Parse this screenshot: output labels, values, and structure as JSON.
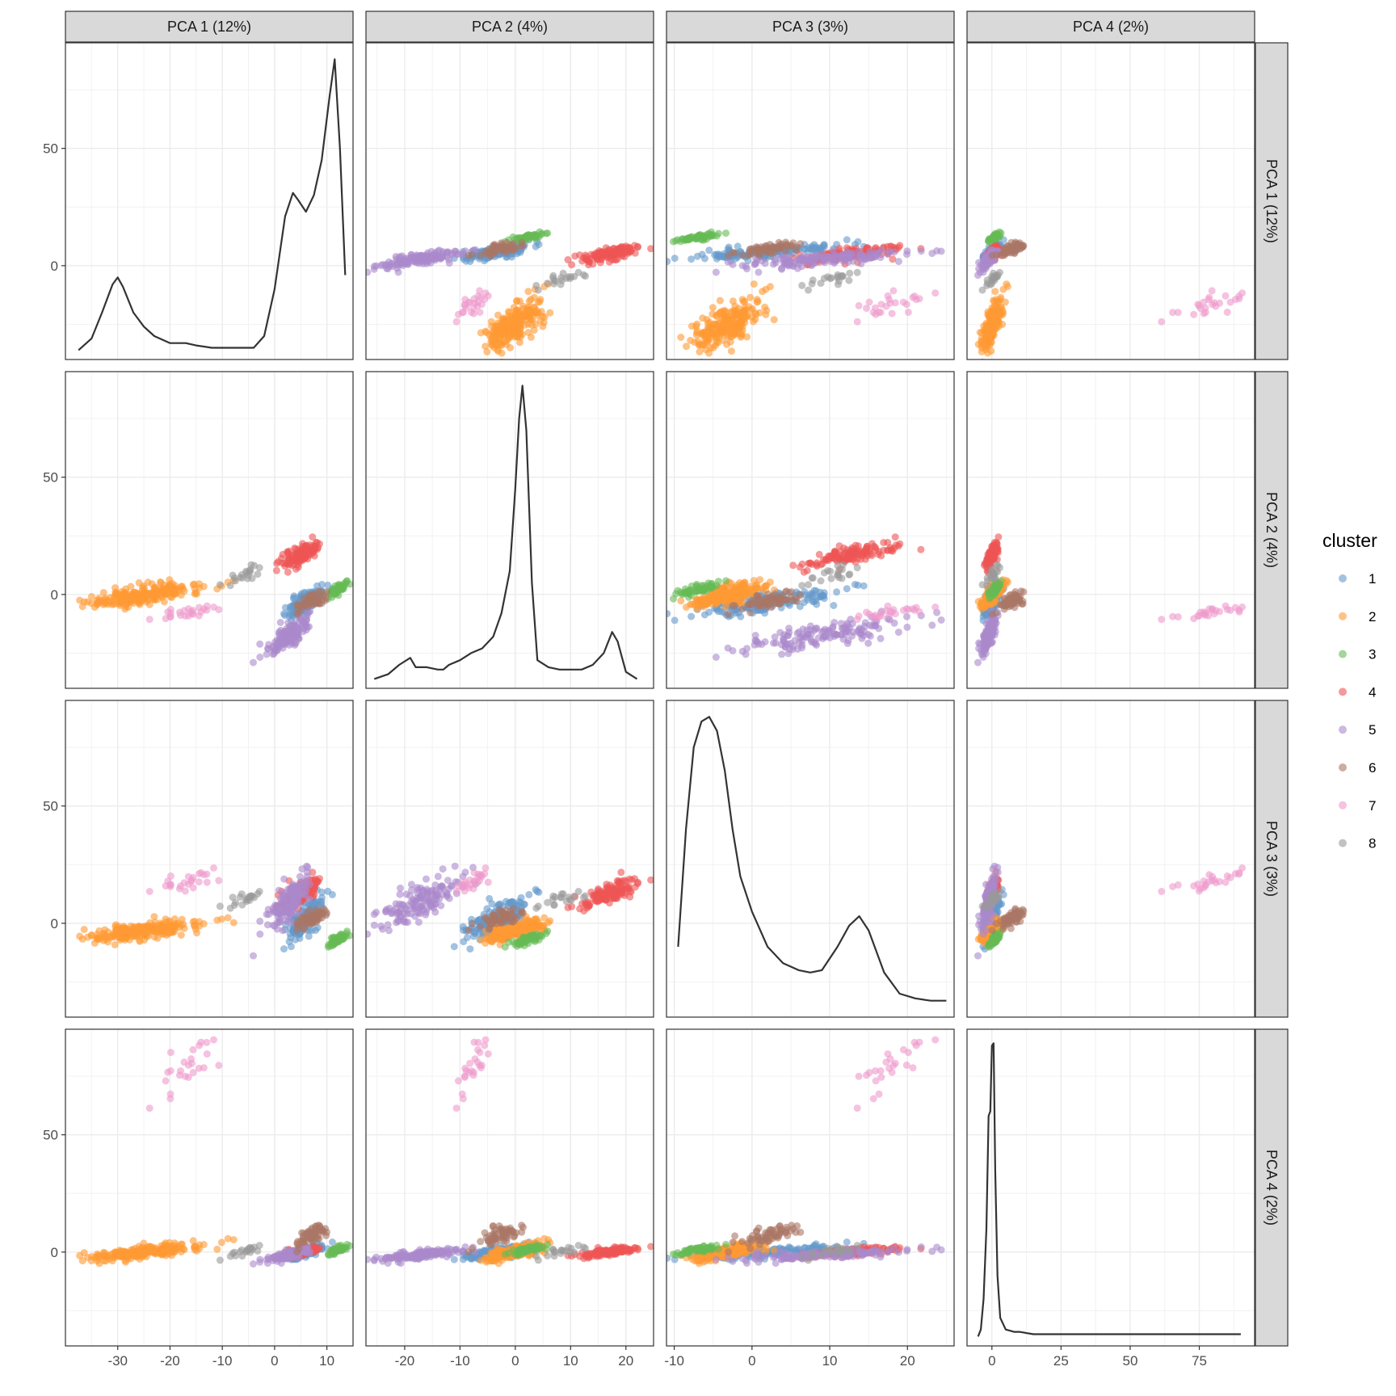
{
  "chart_data": {
    "type": "scatter",
    "layout": "pairs-matrix",
    "title": "",
    "variables": [
      {
        "label": "PCA 1 (12%)",
        "range": [
          -40,
          15
        ],
        "ticks": [
          -30,
          -20,
          -10,
          0,
          10
        ],
        "tick_labels": [
          "-30",
          "-20",
          "-10",
          "0",
          "10"
        ]
      },
      {
        "label": "PCA 2 (4%)",
        "range": [
          -27,
          25
        ],
        "ticks": [
          -20,
          -10,
          0,
          10,
          20
        ],
        "tick_labels": [
          "-20",
          "-10",
          "0",
          "10",
          "20"
        ]
      },
      {
        "label": "PCA 3 (3%)",
        "range": [
          -11,
          26
        ],
        "ticks": [
          -10,
          0,
          10,
          20
        ],
        "tick_labels": [
          "-10",
          "0",
          "10",
          "20"
        ]
      },
      {
        "label": "PCA 4 (2%)",
        "range": [
          -9,
          95
        ],
        "ticks": [
          0,
          25,
          50,
          75
        ],
        "tick_labels": [
          "0",
          "25",
          "50",
          "75"
        ]
      }
    ],
    "y_axis": {
      "range": [
        -40,
        95
      ],
      "ticks": [
        0,
        50
      ],
      "tick_labels": [
        "0",
        "50"
      ]
    },
    "grid": true,
    "legend": {
      "title": "cluster",
      "position": "right"
    },
    "clusters": [
      {
        "name": "1",
        "color": "#6699CC",
        "center": [
          6,
          -3,
          2,
          0
        ],
        "spread": [
          1.8,
          3.5,
          5,
          1.5
        ],
        "count": 160
      },
      {
        "name": "2",
        "color": "#FF9933",
        "center": [
          -25,
          0,
          -3,
          0
        ],
        "spread": [
          6,
          3,
          2.5,
          2
        ],
        "count": 220
      },
      {
        "name": "3",
        "color": "#66BB55",
        "center": [
          12,
          2,
          -7,
          1
        ],
        "spread": [
          1,
          1.5,
          1.2,
          1
        ],
        "count": 60
      },
      {
        "name": "4",
        "color": "#EE5555",
        "center": [
          5,
          17,
          13,
          0
        ],
        "spread": [
          2,
          3,
          3.5,
          1.2
        ],
        "count": 130
      },
      {
        "name": "5",
        "color": "#AA88CC",
        "center": [
          3,
          -17,
          10,
          -1
        ],
        "spread": [
          2,
          4,
          6,
          1.5
        ],
        "count": 140
      },
      {
        "name": "6",
        "color": "#AA7766",
        "center": [
          7,
          -3,
          2,
          7
        ],
        "spread": [
          2,
          2.5,
          3,
          3
        ],
        "count": 60
      },
      {
        "name": "7",
        "color": "#EE99CC",
        "center": [
          -17,
          -8,
          17,
          78
        ],
        "spread": [
          3,
          1.5,
          3,
          8
        ],
        "count": 25
      },
      {
        "name": "8",
        "color": "#999999",
        "center": [
          -6,
          8,
          10,
          0
        ],
        "spread": [
          2,
          3,
          2,
          1.5
        ],
        "count": 20
      }
    ],
    "density_curves": [
      {
        "variable": "PCA 1 (12%)",
        "x": [
          -37.5,
          -35,
          -33,
          -31,
          -30,
          -29,
          -27,
          -25,
          -23,
          -20,
          -17,
          -15,
          -12,
          -10,
          -8,
          -6,
          -4,
          -2,
          0,
          2,
          3.5,
          4.5,
          6,
          7.5,
          9,
          10.5,
          11.5,
          12.5,
          13.5
        ],
        "y": [
          -36,
          -31,
          -20,
          -8,
          -5,
          -9,
          -20,
          -26,
          -30,
          -33,
          -33,
          -34,
          -35,
          -35,
          -35,
          -35,
          -35,
          -30,
          -10,
          21,
          31,
          28,
          23,
          30,
          45,
          72,
          88,
          50,
          -4
        ]
      },
      {
        "variable": "PCA 2 (4%)",
        "x": [
          -25.5,
          -23,
          -21,
          -19,
          -18,
          -16,
          -14,
          -13,
          -12,
          -10,
          -8,
          -6,
          -4,
          -2.5,
          -1,
          0,
          0.7,
          1.3,
          2,
          3,
          4,
          6,
          8,
          10,
          12,
          14,
          16,
          17.5,
          18.5,
          20,
          22
        ],
        "y": [
          -36,
          -34,
          -30,
          -27,
          -31,
          -31,
          -32,
          -32,
          -30,
          -28,
          -25,
          -23,
          -18,
          -8,
          10,
          45,
          75,
          89,
          70,
          5,
          -28,
          -31,
          -32,
          -32,
          -32,
          -30,
          -25,
          -16,
          -20,
          -33,
          -36
        ]
      },
      {
        "variable": "PCA 3 (3%)",
        "x": [
          -9.5,
          -8.5,
          -7.5,
          -6.5,
          -5.5,
          -4.5,
          -3.5,
          -2.5,
          -1.5,
          0,
          2,
          4,
          6,
          7.5,
          9,
          11,
          12.5,
          13.8,
          15,
          17,
          19,
          21,
          23,
          25
        ],
        "y": [
          -10,
          40,
          75,
          86,
          88,
          82,
          65,
          40,
          20,
          5,
          -10,
          -17,
          -20,
          -21,
          -20,
          -10,
          -1,
          3,
          -3,
          -21,
          -30,
          -32,
          -33,
          -33
        ]
      },
      {
        "variable": "PCA 4 (2%)",
        "x": [
          -5,
          -4,
          -3,
          -2,
          -1.2,
          -0.6,
          0,
          0.6,
          1.2,
          2,
          3,
          5,
          8,
          10,
          15,
          25,
          50,
          75,
          90
        ],
        "y": [
          -36,
          -33,
          -20,
          10,
          58,
          60,
          88,
          89,
          35,
          -10,
          -28,
          -33,
          -34,
          -34,
          -35,
          -35,
          -35,
          -35,
          -35
        ]
      }
    ]
  }
}
